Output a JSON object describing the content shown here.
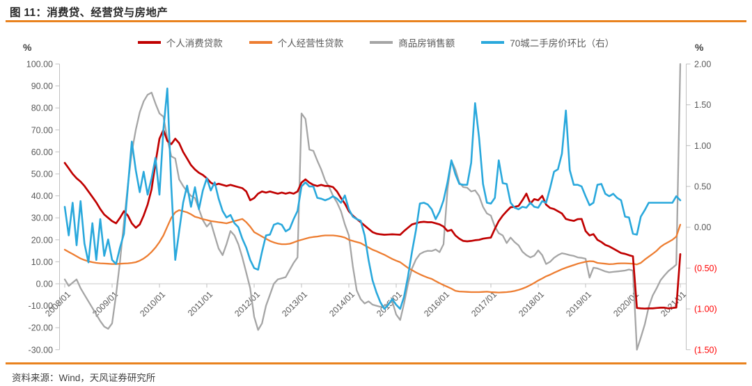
{
  "title": "图 11：消费贷、经营贷与房地产",
  "source": "资料来源：Wind，天风证券研究所",
  "axis_unit_left": "%",
  "axis_unit_right": "%",
  "colors": {
    "accent_orange": "#E9821E",
    "axis_line": "#BFBFBF",
    "axis_text": "#595959",
    "negative_right_tick": "#FF0000",
    "series_consumer": "#C00000",
    "series_business": "#ED7D31",
    "series_housing": "#A5A5A5",
    "series_price": "#29A8DC"
  },
  "chart_data": {
    "type": "line",
    "frequency": "monthly",
    "x_start": "2008/01",
    "x_end": "2021/01",
    "x_tick_labels": [
      "2008/01",
      "2009/01",
      "2010/01",
      "2011/01",
      "2012/01",
      "2013/01",
      "2014/01",
      "2015/01",
      "2016/01",
      "2017/01",
      "2018/01",
      "2019/01",
      "2020/01",
      "2021/01"
    ],
    "left_axis": {
      "unit": "%",
      "min": -30,
      "max": 100,
      "step": 10,
      "tick_values": [
        100,
        90,
        80,
        70,
        60,
        50,
        40,
        30,
        20,
        10,
        0,
        -10,
        -20,
        -30
      ],
      "tick_labels": [
        "100.00",
        "90.00",
        "80.00",
        "70.00",
        "60.00",
        "50.00",
        "40.00",
        "30.00",
        "20.00",
        "10.00",
        "0.00",
        "-10.00",
        "-20.00",
        "-30.00"
      ]
    },
    "right_axis": {
      "unit": "%",
      "min": -1.5,
      "max": 2,
      "step": 0.5,
      "tick_values": [
        2,
        1.5,
        1,
        0.5,
        0,
        -0.5,
        -1,
        -1.5
      ],
      "tick_labels": [
        "2.00",
        "1.50",
        "1.00",
        "0.50",
        "0.00",
        "(0.50)",
        "(1.00)",
        "(1.50)"
      ]
    },
    "series": [
      {
        "id": "consumer-loans",
        "name": "个人消费贷款",
        "axis": "left",
        "color": "#C00000",
        "width": 2.7,
        "values": [
          55,
          52.5,
          50,
          48,
          46.5,
          44.5,
          42,
          39.5,
          37,
          34,
          31.5,
          30,
          28.5,
          27.5,
          30,
          33,
          31,
          27.5,
          25.5,
          27,
          31,
          36,
          43,
          55,
          66,
          70,
          65,
          63.5,
          66,
          64,
          60,
          57,
          54,
          52,
          50.5,
          49.5,
          48,
          46,
          45,
          45.5,
          45,
          44.5,
          45,
          44.5,
          44,
          43.5,
          42,
          38,
          39,
          41,
          42,
          41.5,
          42,
          41.5,
          41,
          41.5,
          41,
          41.5,
          41,
          42,
          46,
          47.5,
          46,
          45,
          44.5,
          45,
          44.5,
          44.5,
          44,
          42,
          39,
          36.5,
          33,
          31,
          29.5,
          28,
          26.5,
          25,
          23.5,
          22.8,
          22.5,
          22.3,
          22.4,
          22.5,
          22.4,
          22.3,
          24,
          25.5,
          27,
          27.5,
          28,
          28.2,
          28,
          28,
          27.5,
          27,
          26,
          24,
          24.5,
          22,
          20.5,
          19.5,
          19.3,
          19.5,
          19.8,
          20,
          20.5,
          20.8,
          21,
          25,
          28.5,
          31,
          33,
          34.8,
          35,
          35.4,
          38,
          41,
          36.5,
          38.5,
          38,
          40,
          36,
          34.5,
          34,
          33,
          32,
          29.5,
          29,
          28.6,
          29.4,
          29.5,
          24,
          22,
          22.6,
          20,
          19,
          17.7,
          17,
          16,
          15,
          14,
          13.6,
          13,
          12.5,
          -11,
          -11.2,
          -11.3,
          -11.2,
          -11.2,
          -11,
          -10.9,
          -10.9,
          -11.2,
          -11,
          -10.8,
          13.5
        ]
      },
      {
        "id": "business-loans",
        "name": "个人经营性贷款",
        "axis": "left",
        "color": "#ED7D31",
        "width": 2.3,
        "values": [
          15.5,
          14.5,
          13.5,
          12.5,
          11.5,
          10.8,
          10.2,
          9.8,
          9.5,
          9.3,
          9.2,
          9.1,
          9,
          9,
          9.1,
          9.2,
          9.3,
          9.5,
          9.8,
          10.5,
          11.5,
          12.8,
          14.5,
          16.5,
          19,
          22,
          26,
          30,
          32.5,
          33.5,
          33,
          32.5,
          31.6,
          30.5,
          30,
          29.4,
          29,
          28.5,
          28.3,
          28,
          27.8,
          27.5,
          28,
          28.5,
          29,
          29.5,
          28,
          26,
          23.5,
          22.5,
          21.5,
          20.5,
          19.5,
          18.8,
          18.3,
          18,
          18,
          18.2,
          18.8,
          19.5,
          20,
          20.5,
          21,
          21.3,
          21.5,
          21.8,
          22,
          22,
          22,
          21.8,
          21.5,
          21,
          20,
          19.5,
          19,
          18.5,
          17.5,
          16.5,
          15.5,
          14.8,
          14,
          13.2,
          12.2,
          11.3,
          10.5,
          9.8,
          8.5,
          7.2,
          6.2,
          5.2,
          4.3,
          3.5,
          2.8,
          2.2,
          1.2,
          0.3,
          -0.6,
          -1.4,
          -2.2,
          -3.2,
          -3.5,
          -3.6,
          -3.7,
          -3.8,
          -3.8,
          -3.8,
          -3.7,
          -3.6,
          -3.8,
          -3.9,
          -4,
          -3.9,
          -3.8,
          -3.6,
          -3.3,
          -2.8,
          -2.2,
          -1.5,
          -0.6,
          0.4,
          1.5,
          2.4,
          3.4,
          4.1,
          5,
          5.8,
          6.6,
          7.3,
          7.9,
          8.5,
          9.1,
          9.6,
          10,
          10.3,
          10.2,
          9.5,
          9.3,
          9.1,
          8.9,
          9,
          9.2,
          9.3,
          9.3,
          9.2,
          9.1,
          8.8,
          9.5,
          11,
          12.3,
          13.6,
          15,
          16.8,
          18,
          19,
          20,
          21.5,
          26.9
        ]
      },
      {
        "id": "housing-sales",
        "name": "商品房销售额",
        "axis": "left",
        "color": "#A5A5A5",
        "width": 2.3,
        "values": [
          2,
          -1,
          0.5,
          2,
          -2,
          -5,
          -8,
          -11,
          -14,
          -17,
          -19.5,
          -20.5,
          -18,
          -5,
          10,
          28,
          45,
          60,
          70,
          78,
          83,
          86,
          87,
          82,
          77.5,
          76,
          66,
          58,
          57,
          47.5,
          44.5,
          42,
          40,
          39,
          34,
          29,
          26,
          28,
          22,
          16,
          13,
          18,
          24,
          22,
          18,
          12,
          5,
          -2,
          -15,
          -21,
          -18,
          -10,
          -5,
          0,
          2,
          2.5,
          3,
          6.3,
          9.5,
          12,
          77.5,
          75,
          61,
          60.5,
          56,
          52,
          47,
          44,
          40,
          37,
          33,
          27,
          22,
          8,
          -3,
          -7,
          -9,
          -8,
          -9.5,
          -10,
          -10.5,
          -10,
          -9,
          -8,
          -14,
          -16.5,
          -9,
          0,
          7,
          11,
          13.5,
          14.5,
          15,
          14.9,
          15.6,
          14.4,
          18,
          43,
          56,
          52,
          46,
          44,
          43.7,
          42,
          42.5,
          40,
          35,
          32,
          31,
          26,
          23,
          22,
          18.5,
          21,
          19,
          17.5,
          14.6,
          13,
          12,
          12.8,
          15.2,
          13,
          9,
          10,
          11.8,
          13,
          13.9,
          13.5,
          13,
          12.7,
          12,
          11.8,
          11.4,
          2.8,
          7.3,
          7,
          6.3,
          5.6,
          5.2,
          5.4,
          5.6,
          5.8,
          6,
          6.5,
          6,
          -30,
          -24.5,
          -18.5,
          -10.5,
          -5.4,
          -2.1,
          1.6,
          3.8,
          5.8,
          7.2,
          8.7,
          100
        ]
      },
      {
        "id": "price-mom",
        "name": "70城二手房价环比（右）",
        "axis": "right",
        "color": "#29A8DC",
        "width": 2.6,
        "values": [
          0.25,
          -0.1,
          0.3,
          -0.22,
          0.32,
          -0.2,
          -0.43,
          0.05,
          -0.4,
          0.1,
          -0.35,
          -0.15,
          -0.4,
          -0.45,
          -0.25,
          -0.08,
          0.5,
          1.05,
          0.7,
          0.43,
          0.68,
          0.4,
          0.6,
          0.85,
          0.4,
          1.2,
          1.7,
          0.5,
          -0.4,
          -0.05,
          0.3,
          0.51,
          0.25,
          0.49,
          0.22,
          0.45,
          0.6,
          0.45,
          0.55,
          0.35,
          0.2,
          0.12,
          0.15,
          0.05,
          0,
          -0.14,
          -0.25,
          -0.4,
          -0.5,
          -0.52,
          -0.3,
          -0.1,
          -0.09,
          0.03,
          0.05,
          0.03,
          -0.05,
          -0.02,
          0.1,
          0.2,
          0.5,
          0.55,
          0.5,
          0.5,
          0.36,
          0.35,
          0.33,
          0.35,
          0.38,
          0.35,
          0.3,
          0.39,
          0.22,
          0.13,
          0.1,
          0.08,
          -0.1,
          -0.4,
          -0.65,
          -0.8,
          -0.92,
          -1,
          -0.95,
          -0.88,
          -0.95,
          -1,
          -0.85,
          -0.6,
          -0.3,
          -0.04,
          0.29,
          0.3,
          0.28,
          0.22,
          0.1,
          0.19,
          0.33,
          0.55,
          0.82,
          0.65,
          0.53,
          0.52,
          0.52,
          0.79,
          1.52,
          1.1,
          0.53,
          0.3,
          0.29,
          0.36,
          0.82,
          0.54,
          0.53,
          0.3,
          0.24,
          0.22,
          0.25,
          0.24,
          0.3,
          0.25,
          0.24,
          0.32,
          0.3,
          0.48,
          0.68,
          0.71,
          0.9,
          1.43,
          0.7,
          0.52,
          0.52,
          0.5,
          0.38,
          0.27,
          0.3,
          0.52,
          0.53,
          0.41,
          0.38,
          0.41,
          0.36,
          0.33,
          0.13,
          0.12,
          -0.08,
          -0.09,
          0.13,
          0.21,
          0.3,
          0.3,
          0.3,
          0.3,
          0.3,
          0.3,
          0.3,
          0.38,
          0.33
        ]
      }
    ]
  }
}
